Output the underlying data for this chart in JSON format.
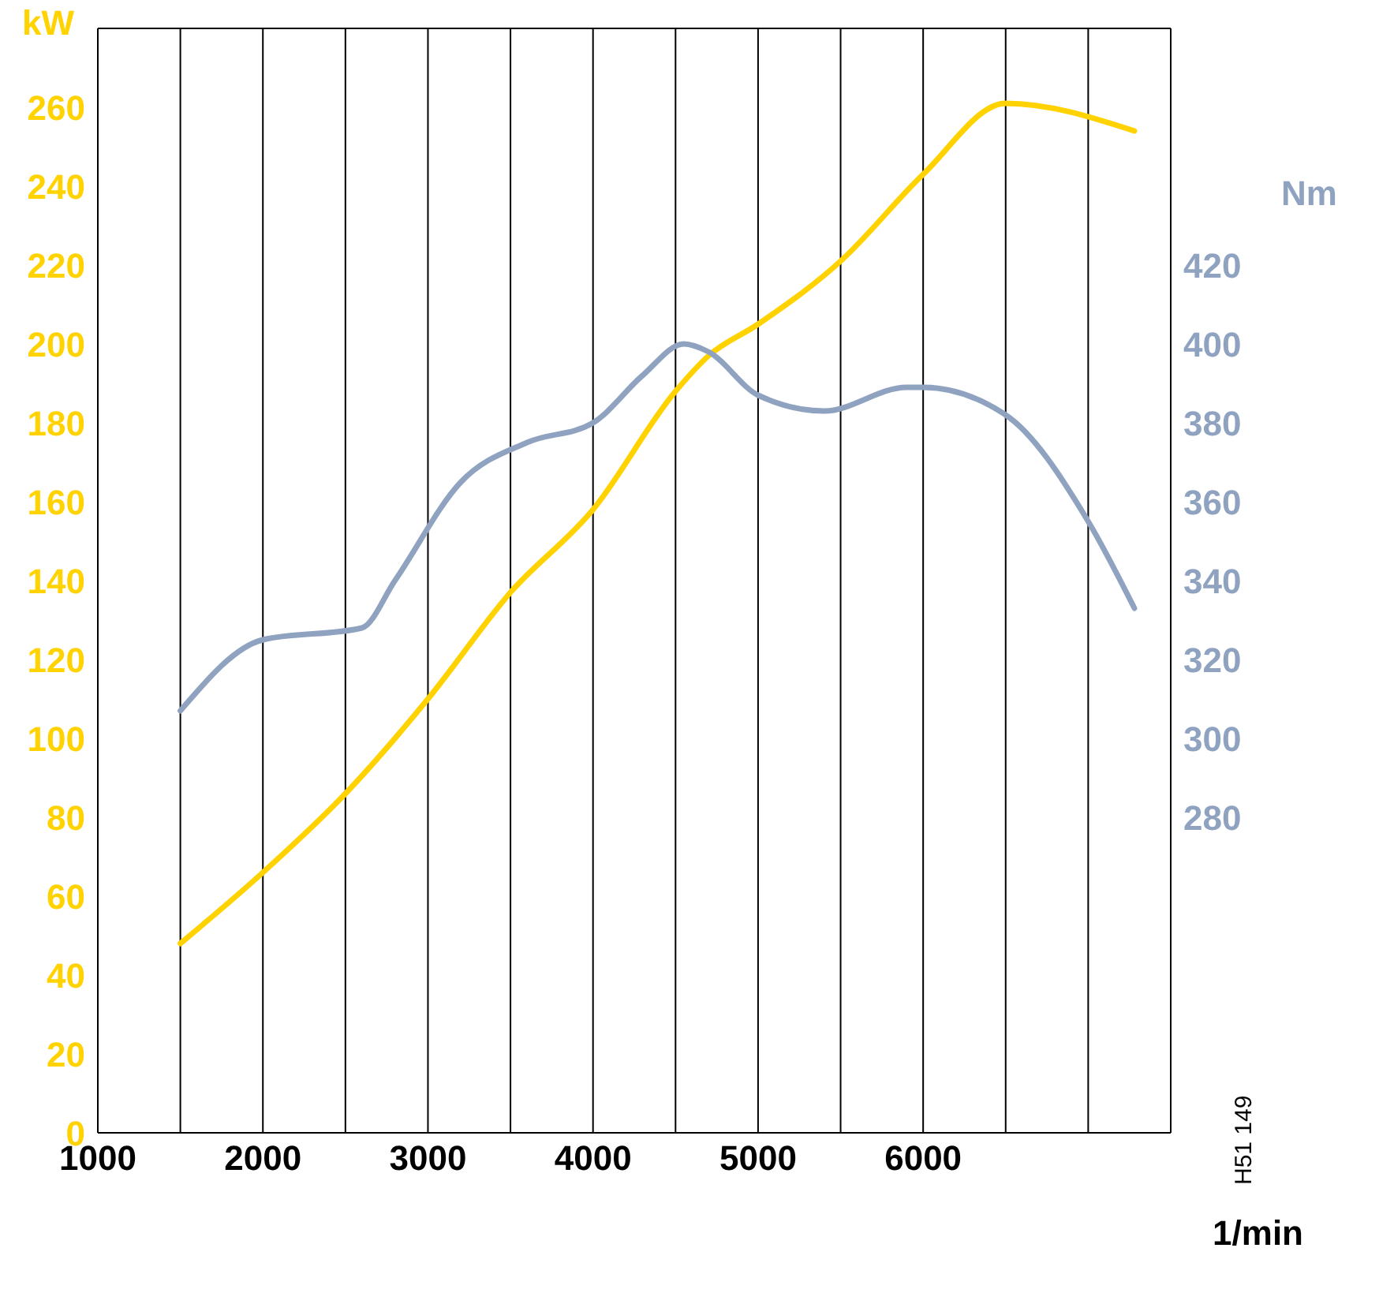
{
  "chart_data": {
    "type": "line",
    "ylabel": "kW",
    "y2label": "Nm",
    "xlabel": "1/min",
    "xlim": [
      1000,
      7500
    ],
    "xticks": [
      1000,
      {
        "value": 1500,
        "label": null
      },
      2000,
      {
        "value": 2500,
        "label": null
      },
      3000,
      {
        "value": 3500,
        "label": null
      },
      4000,
      {
        "value": 4500,
        "label": null
      },
      5000,
      {
        "value": 5500,
        "label": null
      },
      6000,
      {
        "value": 6500,
        "label": null
      },
      {
        "value": 7000,
        "label": null
      },
      {
        "value": 7500,
        "label": null
      }
    ],
    "ylim": [
      0,
      280
    ],
    "yticks": [
      0,
      20,
      40,
      60,
      80,
      100,
      120,
      140,
      160,
      180,
      200,
      220,
      240,
      260
    ],
    "y2lim": [
      200,
      480
    ],
    "y2ticks": [
      280,
      300,
      320,
      340,
      360,
      380,
      400,
      420
    ],
    "grid": true,
    "marker": "none",
    "line_style": "solid",
    "annotations": [
      "H51 149"
    ],
    "series": [
      {
        "color": "#ffd200",
        "x": [
          1500,
          2000,
          2500,
          3000,
          3500,
          4000,
          4500,
          4700,
          5000,
          5500,
          6000,
          6500,
          7280
        ],
        "values": [
          48,
          66,
          86,
          110,
          137,
          158,
          188,
          197,
          205,
          221,
          243,
          261,
          254
        ]
      },
      {
        "color": "#8fa3c0",
        "axis": "y2",
        "x": [
          1500,
          2000,
          2600,
          2800,
          3200,
          3600,
          4000,
          4300,
          4550,
          4700,
          5000,
          5400,
          5900,
          6000,
          6500,
          7000,
          7280
        ],
        "values": [
          307,
          325,
          328,
          340,
          365,
          375,
          380,
          392,
          400,
          398,
          387,
          383,
          389,
          389,
          382,
          355,
          333
        ]
      }
    ]
  }
}
